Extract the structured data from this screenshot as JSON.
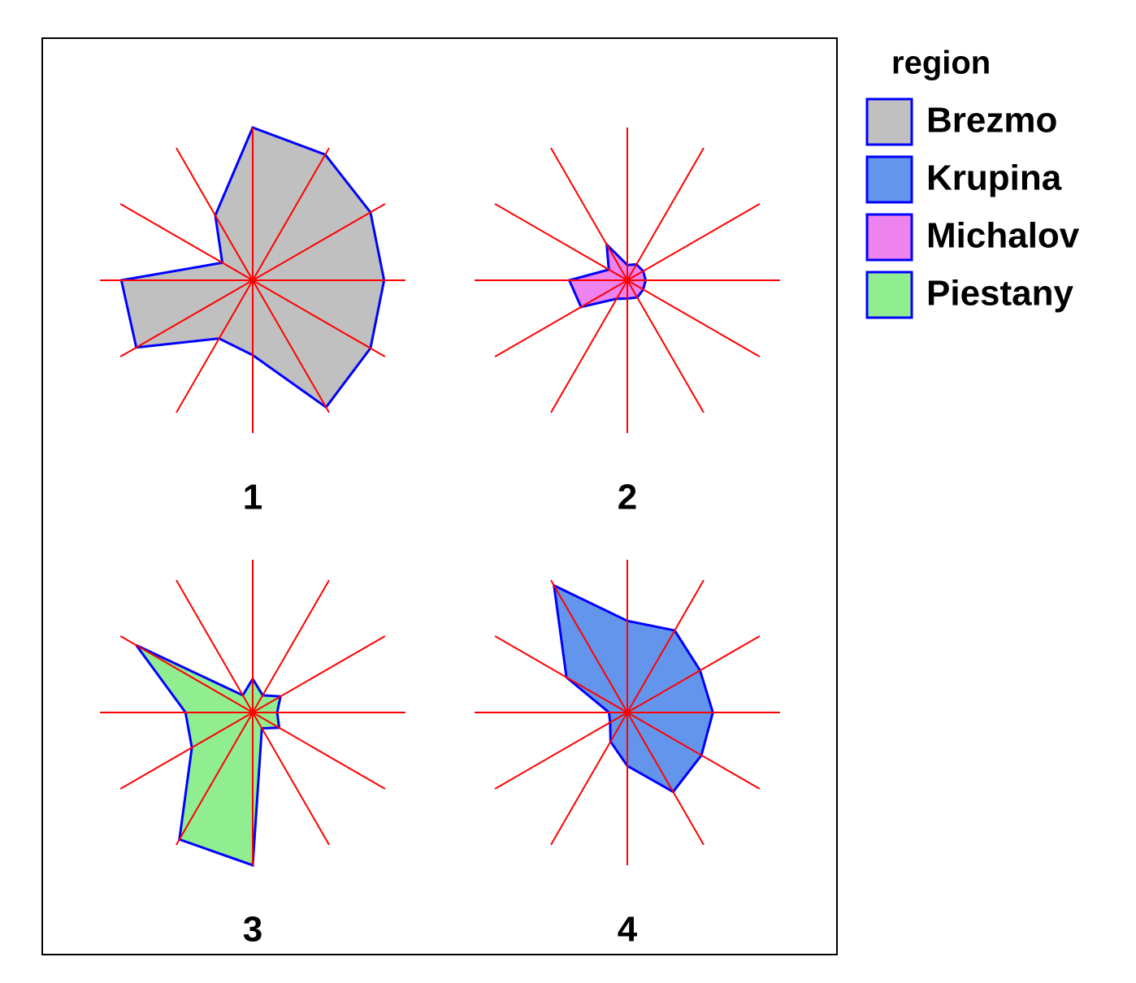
{
  "chart_data": {
    "type": "star",
    "legend_title": "region",
    "rlim": [
      0,
      1
    ],
    "series": [
      {
        "name": "Brezmo",
        "color": "#c0c0c0",
        "label": "1",
        "values": [
          0.86,
          0.89,
          0.95,
          1.0,
          0.49,
          0.23,
          0.86,
          0.88,
          0.44,
          0.49,
          0.96,
          0.89
        ]
      },
      {
        "name": "Krupina",
        "color": "#6495ed",
        "label": "4",
        "values": [
          0.56,
          0.55,
          0.62,
          0.6,
          0.96,
          0.46,
          0.12,
          0.13,
          0.22,
          0.35,
          0.6,
          0.56
        ]
      },
      {
        "name": "Michalov",
        "color": "#ee82ee",
        "label": "2",
        "values": [
          0.12,
          0.12,
          0.12,
          0.1,
          0.27,
          0.14,
          0.38,
          0.35,
          0.14,
          0.12,
          0.13,
          0.12
        ]
      },
      {
        "name": "Piestany",
        "color": "#90ee90",
        "label": "3",
        "values": [
          0.16,
          0.21,
          0.13,
          0.22,
          0.13,
          0.88,
          0.44,
          0.46,
          0.96,
          1.0,
          0.12,
          0.2
        ]
      }
    ]
  }
}
